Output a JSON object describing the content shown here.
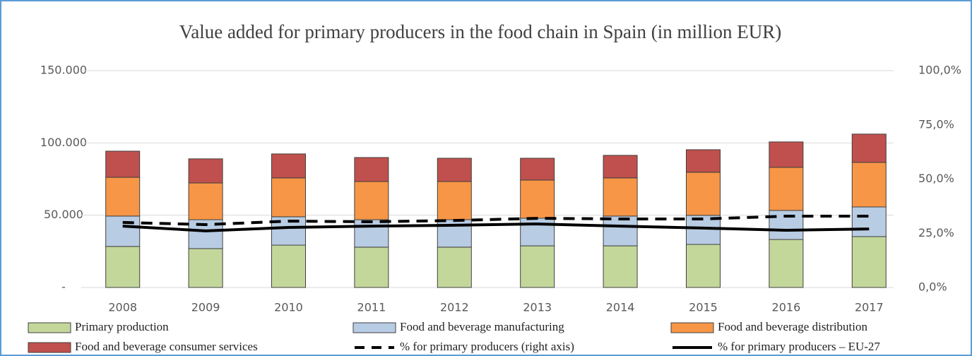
{
  "chart_data": {
    "type": "bar",
    "title": "Value added for primary producers in the food chain in Spain (in million EUR)",
    "categories": [
      "2008",
      "2009",
      "2010",
      "2011",
      "2012",
      "2013",
      "2014",
      "2015",
      "2016",
      "2017"
    ],
    "series": [
      {
        "name": "Primary production",
        "color": "#c4d79b",
        "values": [
          28400,
          26900,
          29300,
          27900,
          27900,
          28800,
          28800,
          29800,
          33200,
          35200
        ]
      },
      {
        "name": "Food and beverage manufacturing",
        "color": "#b8cce4",
        "values": [
          21000,
          20000,
          19600,
          19000,
          19000,
          19100,
          20600,
          20100,
          20100,
          20500
        ]
      },
      {
        "name": "Food and beverage distribution",
        "color": "#f79646",
        "values": [
          26800,
          25400,
          26900,
          26400,
          26400,
          26400,
          26400,
          29800,
          29800,
          30800
        ]
      },
      {
        "name": "Food and beverage consumer services",
        "color": "#c0504d",
        "values": [
          18100,
          16700,
          16600,
          16600,
          16100,
          15100,
          15600,
          15600,
          17600,
          19600
        ]
      },
      {
        "name": "% for primary producers (right axis)",
        "type": "line",
        "dashed": true,
        "axis": "y2",
        "color": "#000000",
        "values": [
          30.0,
          29.0,
          30.6,
          30.3,
          30.9,
          31.9,
          31.6,
          31.6,
          32.9,
          32.9
        ]
      },
      {
        "name": "% for primary producers – EU-27",
        "type": "line",
        "axis": "y2",
        "color": "#000000",
        "values": [
          28.3,
          26.1,
          27.7,
          28.3,
          28.7,
          29.3,
          28.3,
          27.4,
          26.4,
          27.0
        ]
      }
    ],
    "stacked": true,
    "ylim": [
      0,
      150000
    ],
    "yticks": [
      {
        "value": 0,
        "label": "-"
      },
      {
        "value": 50000,
        "label": "50.000"
      },
      {
        "value": 100000,
        "label": "100.000"
      },
      {
        "value": 150000,
        "label": "150.000"
      }
    ],
    "y2lim": [
      0,
      100
    ],
    "y2ticks": [
      {
        "value": 0,
        "label": "0,0%"
      },
      {
        "value": 25,
        "label": "25,0%"
      },
      {
        "value": 50,
        "label": "50,0%"
      },
      {
        "value": 75,
        "label": "75,0%"
      },
      {
        "value": 100,
        "label": "100,0%"
      }
    ],
    "grid": true,
    "legend": "bottom"
  }
}
